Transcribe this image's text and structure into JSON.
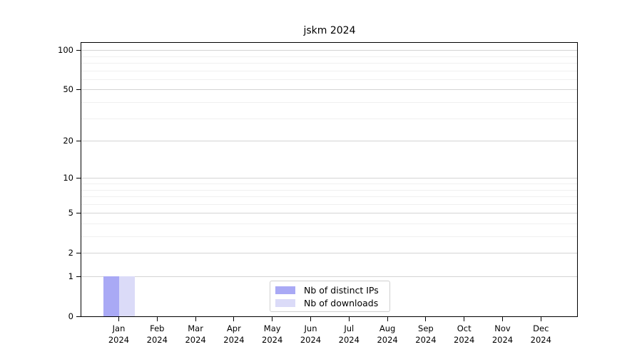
{
  "chart_data": {
    "type": "bar",
    "title": "jskm 2024",
    "categories": [
      "Jan",
      "Feb",
      "Mar",
      "Apr",
      "May",
      "Jun",
      "Jul",
      "Aug",
      "Sep",
      "Oct",
      "Nov",
      "Dec"
    ],
    "year_label": "2024",
    "series": [
      {
        "name": "Nb of distinct IPs",
        "color": "#a9a9f5",
        "values": [
          1,
          0,
          0,
          0,
          0,
          0,
          0,
          0,
          0,
          0,
          0,
          0
        ]
      },
      {
        "name": "Nb of downloads",
        "color": "#dbdbf8",
        "values": [
          1,
          0,
          0,
          0,
          0,
          0,
          0,
          0,
          0,
          0,
          0,
          0
        ]
      }
    ],
    "y_scale": "log10(1+x)",
    "y_ticks": [
      0,
      1,
      2,
      5,
      10,
      20,
      50,
      100
    ],
    "y_minor_ticks": [
      3,
      4,
      6,
      7,
      8,
      9,
      30,
      40,
      60,
      70,
      80,
      90
    ],
    "ylim": [
      0,
      113
    ],
    "grid": "horizontal",
    "legend_position": "bottom-center"
  }
}
